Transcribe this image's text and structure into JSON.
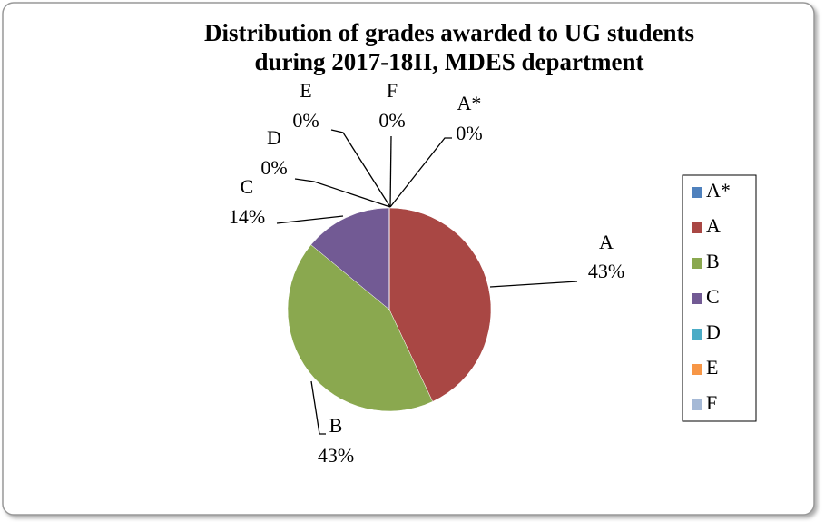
{
  "chart_data": {
    "type": "pie",
    "title": [
      "Distribution of grades awarded to UG students",
      "during 2017-18II, MDES department"
    ],
    "categories": [
      "A*",
      "A",
      "B",
      "C",
      "D",
      "E",
      "F"
    ],
    "values": [
      0,
      43,
      43,
      14,
      0,
      0,
      0
    ],
    "value_labels": [
      "0%",
      "43%",
      "43%",
      "14%",
      "0%",
      "0%",
      "0%"
    ],
    "colors": [
      "#4f81bd",
      "#a94744",
      "#8aa84f",
      "#725a94",
      "#4bacc6",
      "#f79646",
      "#a5b9d6"
    ],
    "legend": "right"
  }
}
